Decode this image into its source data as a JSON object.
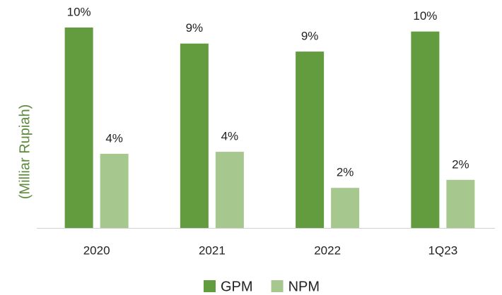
{
  "chart_data": {
    "type": "bar",
    "y_label": "(Milliar Rupiah)",
    "categories": [
      "2020",
      "2021",
      "2022",
      "1Q23"
    ],
    "series": [
      {
        "name": "GPM",
        "color": "#629c3f",
        "values": [
          10.0,
          9.2,
          8.8,
          9.8
        ],
        "value_labels": [
          "10%",
          "9%",
          "9%",
          "10%"
        ]
      },
      {
        "name": "NPM",
        "color": "#a6c88f",
        "values": [
          3.7,
          3.8,
          2.0,
          2.4
        ],
        "value_labels": [
          "4%",
          "4%",
          "2%",
          "2%"
        ]
      }
    ],
    "legend": "bottom"
  }
}
